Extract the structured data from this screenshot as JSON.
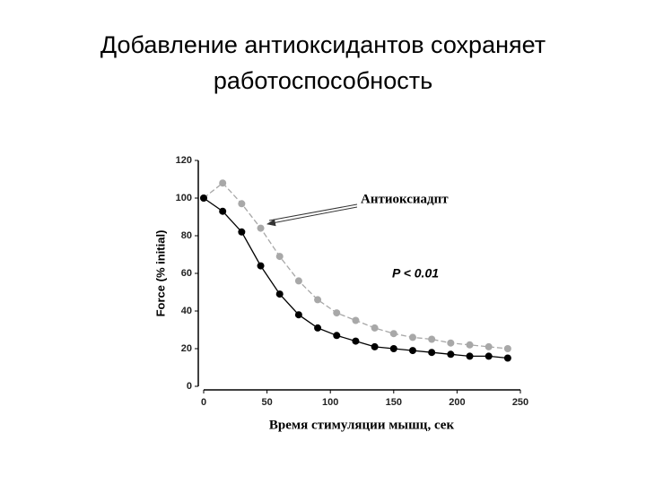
{
  "chart_data": {
    "type": "line",
    "title": "Добавление антиоксидантов сохраняет работоспособность",
    "x_label": "Время стимуляции мышц, сек",
    "y_label": "Force (% initial)",
    "annotations": [
      "Антиоксиадпт",
      "P < 0.01"
    ],
    "x": [
      0,
      15,
      30,
      45,
      60,
      75,
      90,
      105,
      120,
      135,
      150,
      165,
      180,
      195,
      210,
      225,
      240
    ],
    "series": [
      {
        "color": "#a8a8a8",
        "dashed": true,
        "values": [
          100,
          108,
          97,
          84,
          69,
          56,
          46,
          39,
          35,
          31,
          28,
          26,
          25,
          23,
          22,
          21,
          20
        ]
      },
      {
        "color": "#000000",
        "dashed": false,
        "values": [
          100,
          93,
          82,
          64,
          49,
          38,
          31,
          27,
          24,
          21,
          20,
          19,
          18,
          17,
          16,
          16,
          15
        ]
      }
    ],
    "xlim": [
      0,
      250
    ],
    "xticks": [
      0,
      50,
      100,
      150,
      200,
      250
    ],
    "ylim": [
      0,
      120
    ],
    "yticks": [
      0,
      20,
      40,
      60,
      80,
      100,
      120
    ],
    "grid": false
  }
}
